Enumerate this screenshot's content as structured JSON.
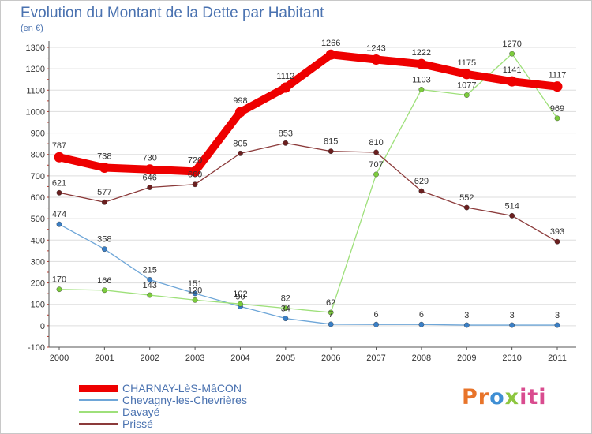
{
  "title": "Evolution du Montant de la Dette par Habitant",
  "unit_label": "(en €)",
  "logo": {
    "text": "Proxiti",
    "parts": [
      "Pr",
      "o",
      "x",
      "iti"
    ]
  },
  "colors": {
    "title": "#4a72b0",
    "axis": "#555555",
    "grid": "#dddddd",
    "label_text": "#333333"
  },
  "chart_data": {
    "type": "line",
    "title": "Evolution du Montant de la Dette par Habitant",
    "xlabel": "",
    "ylabel": "(en €)",
    "x": [
      "2000",
      "2001",
      "2002",
      "2003",
      "2004",
      "2005",
      "2006",
      "2007",
      "2008",
      "2009",
      "2010",
      "2011"
    ],
    "ylim": [
      -100,
      1300
    ],
    "yticks": [
      -100,
      0,
      100,
      200,
      300,
      400,
      500,
      600,
      700,
      800,
      900,
      1000,
      1100,
      1200,
      1300
    ],
    "grid": "horizontal",
    "legend_position": "bottom-left",
    "series": [
      {
        "name": "CHARNAY-LèS-MâCON",
        "color": "#ee0000",
        "marker": "#ee0000",
        "width": "thick",
        "values": [
          787,
          738,
          730,
          720,
          998,
          1112,
          1266,
          1243,
          1222,
          1175,
          1141,
          1117
        ]
      },
      {
        "name": "Chevagny-les-Chevrières",
        "color": "#6ea6d8",
        "marker": "#3a7fc6",
        "width": "thin",
        "values": [
          474,
          358,
          215,
          151,
          90,
          34,
          7,
          6,
          6,
          3,
          3,
          3
        ]
      },
      {
        "name": "Davayé",
        "color": "#9ee07a",
        "marker": "#7ccc3c",
        "width": "thin",
        "values": [
          170,
          166,
          143,
          120,
          102,
          82,
          62,
          707,
          1103,
          1077,
          1270,
          969
        ]
      },
      {
        "name": "Prissé",
        "color": "#8b3a3a",
        "marker": "#6b1f1f",
        "width": "thin",
        "values": [
          621,
          577,
          646,
          660,
          805,
          853,
          815,
          810,
          629,
          552,
          514,
          393
        ]
      }
    ]
  }
}
